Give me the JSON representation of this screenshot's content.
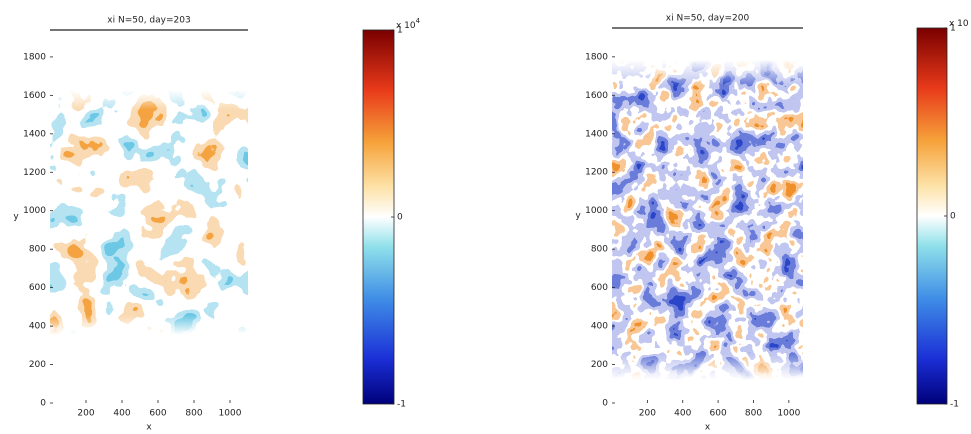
{
  "chart_data": [
    {
      "type": "heatmap",
      "title": "xi  N=50, day=203",
      "xlabel": "x",
      "ylabel": "y",
      "xlim": [
        0,
        1100
      ],
      "ylim": [
        0,
        1940
      ],
      "xticks": [
        200,
        400,
        600,
        800,
        1000
      ],
      "yticks": [
        0,
        200,
        400,
        600,
        800,
        1000,
        1200,
        1400,
        1600,
        1800
      ],
      "colorbar": {
        "lim": [
          -1,
          1
        ],
        "ticks": [
          -1,
          0,
          1
        ],
        "multiplier": "x 10",
        "exponent": "4"
      }
    },
    {
      "type": "heatmap",
      "title": "xi  N=50, day=200",
      "xlabel": "x",
      "ylabel": "y",
      "xlim": [
        0,
        1080
      ],
      "ylim": [
        0,
        1950
      ],
      "xticks": [
        200,
        400,
        600,
        800,
        1000
      ],
      "yticks": [
        0,
        200,
        400,
        600,
        800,
        1000,
        1200,
        1400,
        1600,
        1800
      ],
      "colorbar": {
        "lim": [
          -1,
          1
        ],
        "ticks": [
          -1,
          0,
          1
        ],
        "multiplier": "x 10"
      }
    }
  ]
}
